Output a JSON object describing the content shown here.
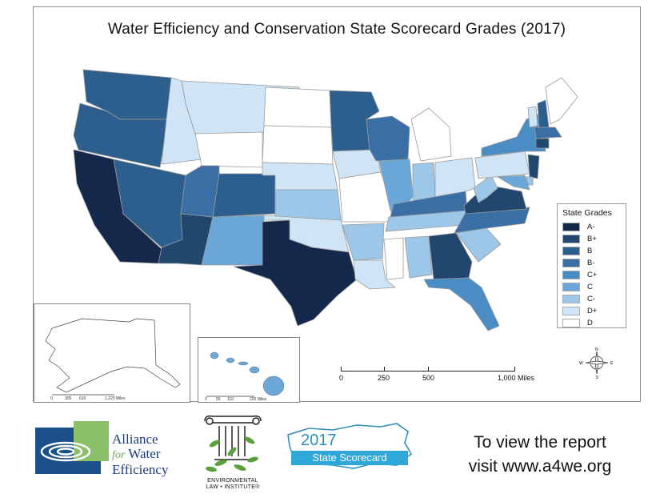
{
  "map": {
    "title": "Water Efficiency and Conservation State Scorecard Grades (2017)"
  },
  "legend": {
    "title": "State Grades",
    "items": [
      {
        "grade": "A-",
        "color": "#14284c"
      },
      {
        "grade": "B+",
        "color": "#22476f"
      },
      {
        "grade": "B",
        "color": "#2d5f8e"
      },
      {
        "grade": "B-",
        "color": "#3a6fa5"
      },
      {
        "grade": "C+",
        "color": "#4a8dc5"
      },
      {
        "grade": "C",
        "color": "#6ba7d8"
      },
      {
        "grade": "C-",
        "color": "#9cc7e8"
      },
      {
        "grade": "D+",
        "color": "#cfe4f5"
      },
      {
        "grade": "D",
        "color": "#ffffff"
      }
    ]
  },
  "scalebar": {
    "labels": [
      "0",
      "250",
      "500",
      "1,000 Miles"
    ]
  },
  "compass": {
    "n": "N",
    "s": "S",
    "e": "E",
    "w": "W"
  },
  "inset_alaska": {
    "scale_labels": [
      "0",
      "305",
      "610",
      "1,220 Miles"
    ]
  },
  "inset_hawaii": {
    "scale_labels": [
      "0",
      "55",
      "110",
      "220 Miles"
    ]
  },
  "logos": {
    "a4we": [
      "Alliance",
      "for",
      "Water",
      "Efficiency"
    ],
    "eli": [
      "ENVIRONMENTAL",
      "LAW • INSTITUTE®"
    ],
    "scorecard": {
      "year": "2017",
      "banner": "State Scorecard"
    }
  },
  "cta": {
    "line1": "To view the report",
    "line2": "visit www.a4we.org"
  }
}
